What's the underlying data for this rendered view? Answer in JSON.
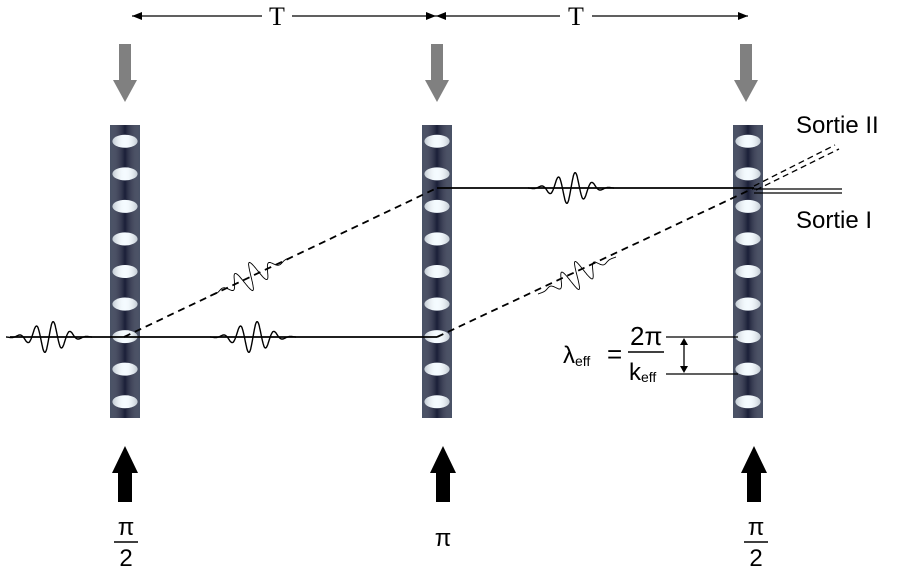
{
  "time_labels": [
    "T",
    "T"
  ],
  "pulse_labels": [
    {
      "numerator": "π",
      "denominator": "2"
    },
    {
      "numerator": "π",
      "denominator": ""
    },
    {
      "numerator": "π",
      "denominator": "2"
    }
  ],
  "outputs": {
    "output_2": "Sortie II",
    "output_1": "Sortie I"
  },
  "wavelength": {
    "lambda": "λ",
    "lambda_sub": "eff",
    "equals": "=",
    "numerator": "2π",
    "k": "k",
    "k_sub": "eff"
  },
  "colors": {
    "top_arrow": "#808080",
    "bottom_arrow": "#000000",
    "grating_dark": "#1a1f38",
    "grating_light": "#f4fbff"
  }
}
